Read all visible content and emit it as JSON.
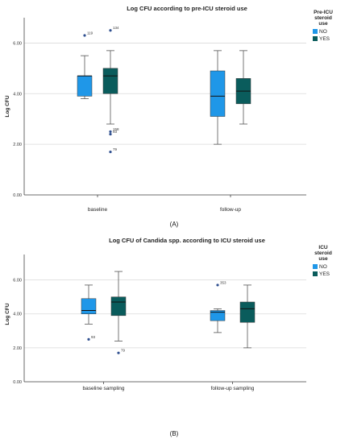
{
  "colors": {
    "no": "#1f97e8",
    "yes": "#0a5c5c",
    "grid": "#d9d9d9",
    "axis": "#444444",
    "outlier": "#2f4f8f"
  },
  "panel_labels": [
    "(A)",
    "(B)"
  ],
  "chart_data": [
    {
      "type": "box",
      "title": "Log CFU according to pre-ICU steroid use",
      "ylabel": "Log CFU",
      "xlabel": "",
      "ylim": [
        0,
        7
      ],
      "yticks": [
        "0.00",
        "2.00",
        "4.00",
        "6.00"
      ],
      "grid": true,
      "legend": {
        "title": [
          "Pre-ICU",
          "steroid",
          "use"
        ],
        "position": "right",
        "entries": [
          "NO",
          "YES"
        ]
      },
      "categories": [
        "baseline",
        "follow-up"
      ],
      "series": [
        {
          "name": "NO",
          "boxes": [
            {
              "min": 3.8,
              "q1": 3.9,
              "median": 4.7,
              "q3": 4.7,
              "max": 5.5,
              "outliers": [
                {
                  "value": 6.3,
                  "label": "119"
                }
              ]
            },
            {
              "min": 2.0,
              "q1": 3.1,
              "median": 3.9,
              "q3": 4.9,
              "max": 5.7,
              "outliers": []
            }
          ]
        },
        {
          "name": "YES",
          "boxes": [
            {
              "min": 2.8,
              "q1": 4.0,
              "median": 4.7,
              "q3": 5.0,
              "max": 5.7,
              "outliers": [
                {
                  "value": 6.5,
                  "label": "134"
                },
                {
                  "value": 2.5,
                  "label": "158"
                },
                {
                  "value": 2.4,
                  "label": "93"
                },
                {
                  "value": 1.7,
                  "label": "79"
                }
              ]
            },
            {
              "min": 2.8,
              "q1": 3.6,
              "median": 4.1,
              "q3": 4.6,
              "max": 5.7,
              "outliers": []
            }
          ]
        }
      ]
    },
    {
      "type": "box",
      "title": "Log CFU of Candida spp. according to ICU steroid use",
      "ylabel": "Log CFU",
      "xlabel": "",
      "ylim": [
        0,
        7.5
      ],
      "yticks": [
        "0.00",
        "2.00",
        "4.00",
        "6.00"
      ],
      "grid": true,
      "legend": {
        "title": [
          "ICU",
          "steroid",
          "use"
        ],
        "position": "right",
        "entries": [
          "NO",
          "YES"
        ]
      },
      "categories": [
        "baseline sampling",
        "follow-up sampling"
      ],
      "series": [
        {
          "name": "NO",
          "boxes": [
            {
              "min": 3.4,
              "q1": 4.0,
              "median": 4.2,
              "q3": 4.9,
              "max": 5.7,
              "outliers": [
                {
                  "value": 2.5,
                  "label": "93"
                }
              ]
            },
            {
              "min": 2.9,
              "q1": 3.6,
              "median": 4.1,
              "q3": 4.2,
              "max": 4.3,
              "outliers": [
                {
                  "value": 5.7,
                  "label": "353"
                }
              ]
            }
          ]
        },
        {
          "name": "YES",
          "boxes": [
            {
              "min": 2.4,
              "q1": 3.9,
              "median": 4.7,
              "q3": 5.0,
              "max": 6.5,
              "outliers": [
                {
                  "value": 1.7,
                  "label": "79"
                }
              ]
            },
            {
              "min": 2.0,
              "q1": 3.5,
              "median": 4.3,
              "q3": 4.7,
              "max": 5.7,
              "outliers": []
            }
          ]
        }
      ]
    }
  ]
}
